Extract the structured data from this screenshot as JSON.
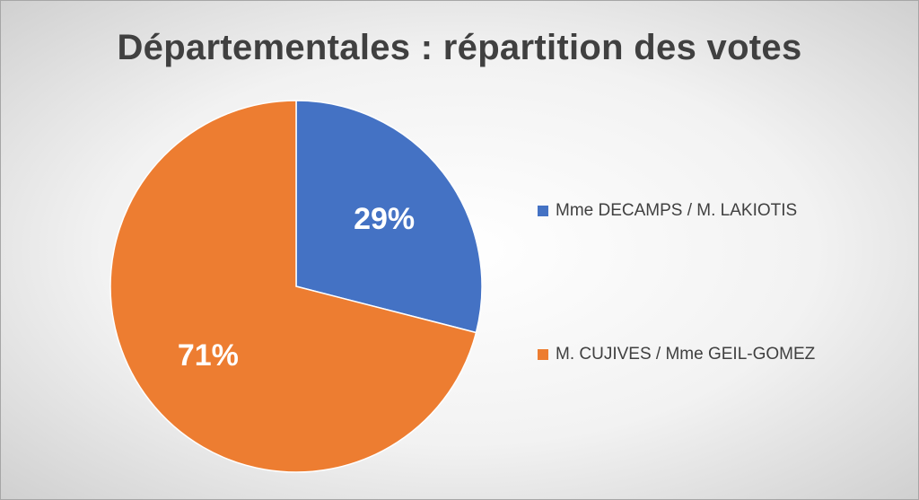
{
  "chart_data": {
    "type": "pie",
    "title": "Départementales : répartition des votes",
    "categories": [
      "Mme DECAMPS / M. LAKIOTIS",
      "M. CUJIVES / Mme GEIL-GOMEZ"
    ],
    "values": [
      29,
      71
    ],
    "data_labels": [
      "29%",
      "71%"
    ],
    "colors": [
      "#4472C4",
      "#ED7D31"
    ],
    "legend_placement": "right"
  }
}
